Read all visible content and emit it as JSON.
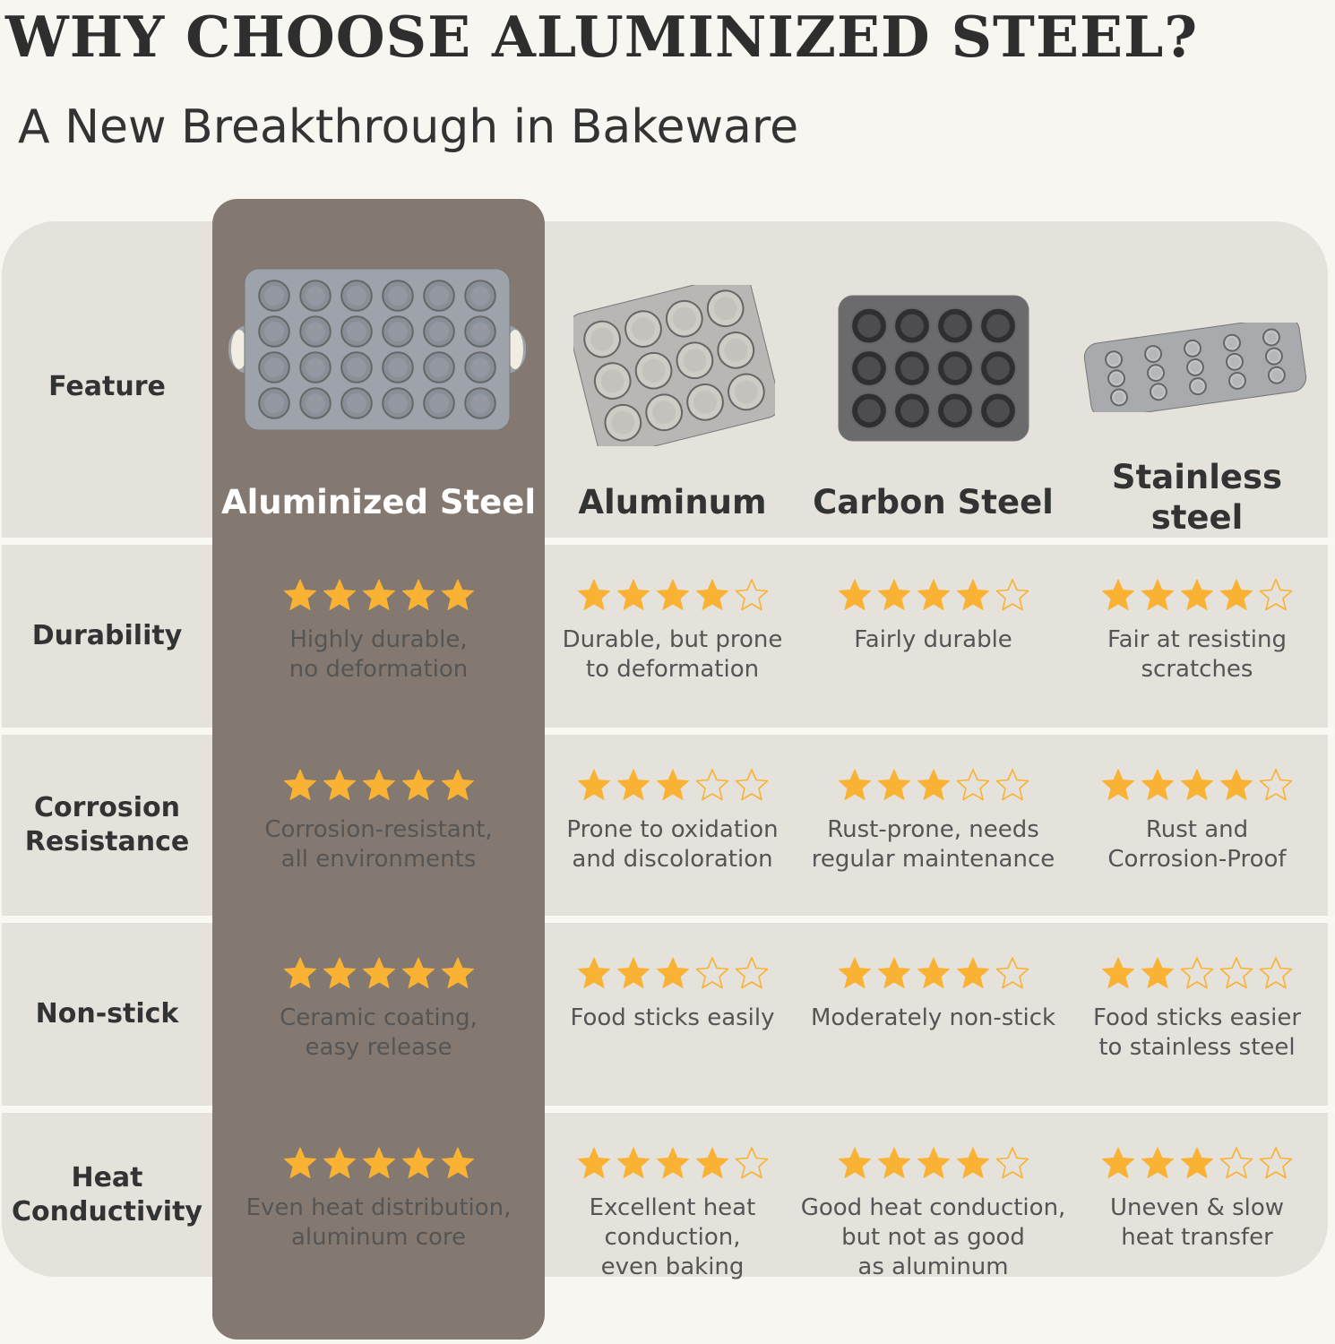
{
  "header": {
    "title": "WHY CHOOSE ALUMINIZED STEEL?",
    "subtitle": "A New Breakthrough in Bakeware"
  },
  "colors": {
    "highlight": "#847970",
    "card": "#e5e2dc",
    "star": "#f9b233",
    "background": "#f8f6f0"
  },
  "table": {
    "feature_header": "Feature",
    "columns": [
      {
        "name": "Aluminized Steel",
        "image": "mini-muffin-pan-with-handles",
        "highlighted": true
      },
      {
        "name": "Aluminum",
        "image": "muffin-pan-aluminum"
      },
      {
        "name": "Carbon Steel",
        "image": "muffin-pan-dark-carbon"
      },
      {
        "name": "Stainless\nsteel",
        "image": "muffin-pan-stainless"
      }
    ],
    "rows": [
      {
        "feature": "Durability",
        "cells": [
          {
            "rating": 5,
            "text": "Highly durable,\nno deformation"
          },
          {
            "rating": 4,
            "text": "Durable, but prone\nto deformation"
          },
          {
            "rating": 4,
            "text": "Fairly durable"
          },
          {
            "rating": 4,
            "text": "Fair at resisting\nscratches"
          }
        ]
      },
      {
        "feature": "Corrosion\nResistance",
        "cells": [
          {
            "rating": 5,
            "text": "Corrosion-resistant,\nall environments"
          },
          {
            "rating": 3,
            "text": "Prone to oxidation\nand discoloration"
          },
          {
            "rating": 3,
            "text": "Rust-prone, needs\nregular maintenance"
          },
          {
            "rating": 4,
            "text": "Rust and\nCorrosion-Proof"
          }
        ]
      },
      {
        "feature": "Non-stick",
        "cells": [
          {
            "rating": 5,
            "text": "Ceramic coating,\neasy release"
          },
          {
            "rating": 3,
            "text": "Food sticks easily"
          },
          {
            "rating": 4,
            "text": "Moderately non-stick"
          },
          {
            "rating": 2,
            "text": "Food sticks easier\nto stainless steel"
          }
        ]
      },
      {
        "feature": "Heat\nConductivity",
        "cells": [
          {
            "rating": 5,
            "text": "Even heat distribution,\naluminum core"
          },
          {
            "rating": 4,
            "text": "Excellent heat\nconduction,\neven baking"
          },
          {
            "rating": 4,
            "text": "Good heat conduction,\nbut not as good\nas aluminum"
          },
          {
            "rating": 3,
            "text": "Uneven & slow\nheat transfer"
          }
        ]
      }
    ],
    "max_rating": 5
  }
}
